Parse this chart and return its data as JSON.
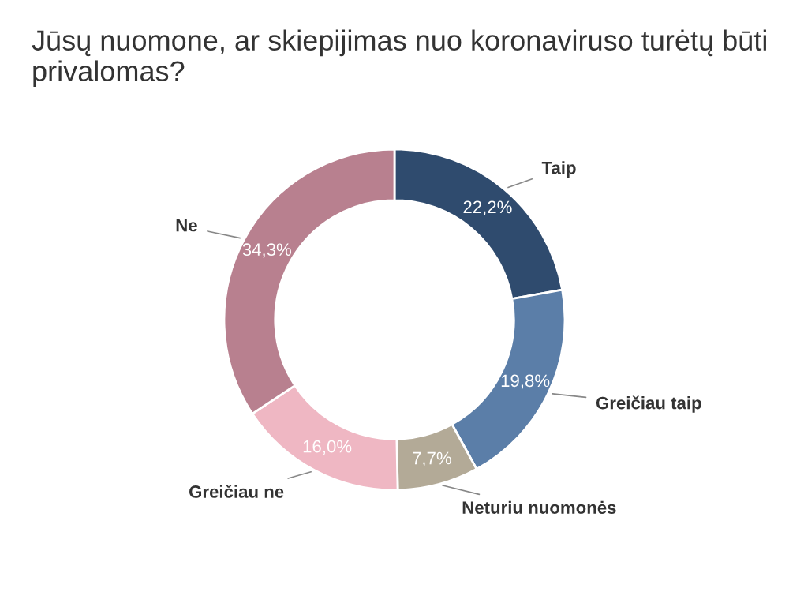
{
  "chart_data": {
    "type": "donut",
    "title": "Jūsų nuomone, ar skiepijimas nuo koronaviruso turėtų būti privalomas?",
    "categories": [
      "Taip",
      "Greičiau taip",
      "Neturiu nuomonės",
      "Greičiau ne",
      "Ne"
    ],
    "values": [
      22.2,
      19.8,
      7.7,
      16.0,
      34.3
    ],
    "value_labels": [
      "22,2%",
      "19,8%",
      "7,7%",
      "16,0%",
      "34,3%"
    ],
    "colors": [
      "#2f4b6e",
      "#5b7ea8",
      "#b3aa97",
      "#efb7c3",
      "#b8808f"
    ],
    "legend": false
  }
}
